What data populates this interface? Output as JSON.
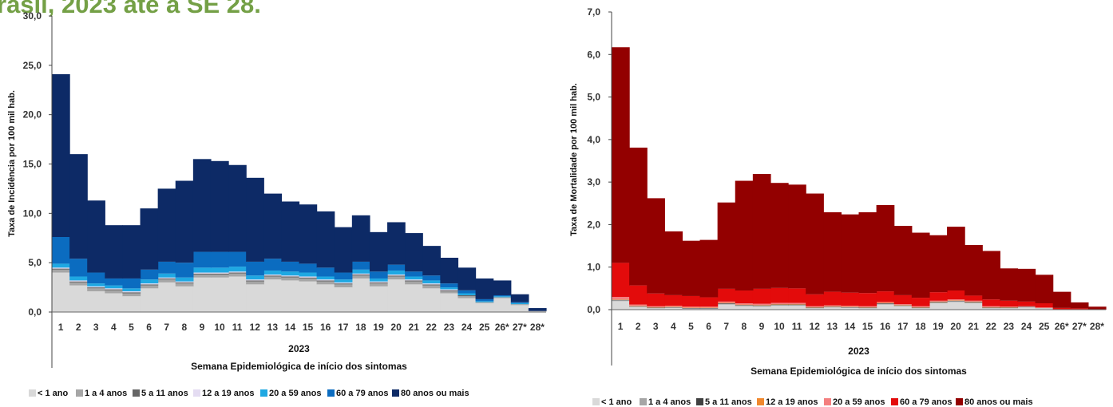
{
  "page": {
    "title_fragment": "rasil, 2023 até a SE 28."
  },
  "chart_data": [
    {
      "type": "area",
      "stacked": true,
      "step": true,
      "ylabel": "Taxa de Incidência por 100 mil hab.",
      "xlabel": "Semana Epidemiológica de início dos sintomas",
      "year_label": "2023",
      "ylim": [
        0,
        30
      ],
      "yticks": [
        "0,0",
        "5,0",
        "10,0",
        "15,0",
        "20,0",
        "25,0",
        "30,0"
      ],
      "categories": [
        "1",
        "2",
        "3",
        "4",
        "5",
        "6",
        "7",
        "8",
        "9",
        "10",
        "11",
        "12",
        "13",
        "14",
        "15",
        "16",
        "17",
        "18",
        "19",
        "20",
        "21",
        "22",
        "23",
        "24",
        "25",
        "26*",
        "27*",
        "28*"
      ],
      "legend_position": "bottom",
      "series": [
        {
          "name": "< 1 ano",
          "color": "#d9d9d9",
          "values": [
            4.0,
            2.7,
            2.1,
            1.9,
            1.6,
            2.4,
            3.0,
            2.6,
            3.5,
            3.5,
            3.6,
            2.8,
            3.3,
            3.2,
            3.1,
            2.8,
            2.5,
            3.4,
            2.6,
            3.3,
            2.8,
            2.4,
            1.9,
            1.4,
            0.9,
            1.4,
            0.7,
            0.1
          ]
        },
        {
          "name": "1 a 4 anos",
          "color": "#a6a6a6",
          "values": [
            0.3,
            0.3,
            0.3,
            0.3,
            0.3,
            0.3,
            0.3,
            0.3,
            0.3,
            0.3,
            0.3,
            0.3,
            0.3,
            0.3,
            0.3,
            0.3,
            0.3,
            0.3,
            0.3,
            0.3,
            0.3,
            0.3,
            0.2,
            0.2,
            0.1,
            0.1,
            0.1,
            0.0
          ]
        },
        {
          "name": "5 a 11 anos",
          "color": "#666666",
          "values": [
            0.1,
            0.1,
            0.1,
            0.1,
            0.1,
            0.1,
            0.1,
            0.1,
            0.1,
            0.1,
            0.1,
            0.1,
            0.1,
            0.1,
            0.1,
            0.1,
            0.1,
            0.1,
            0.1,
            0.1,
            0.1,
            0.1,
            0.1,
            0.1,
            0.0,
            0.0,
            0.0,
            0.0
          ]
        },
        {
          "name": "12 a 19 anos",
          "color": "#e4dcf2",
          "values": [
            0.1,
            0.1,
            0.1,
            0.1,
            0.1,
            0.1,
            0.1,
            0.1,
            0.1,
            0.1,
            0.1,
            0.1,
            0.1,
            0.1,
            0.1,
            0.1,
            0.1,
            0.1,
            0.1,
            0.1,
            0.1,
            0.1,
            0.1,
            0.0,
            0.0,
            0.0,
            0.0,
            0.0
          ]
        },
        {
          "name": "20 a 59 anos",
          "color": "#1fa8e2",
          "values": [
            0.4,
            0.4,
            0.3,
            0.3,
            0.3,
            0.4,
            0.4,
            0.4,
            0.5,
            0.5,
            0.5,
            0.4,
            0.4,
            0.4,
            0.4,
            0.3,
            0.3,
            0.4,
            0.3,
            0.4,
            0.3,
            0.3,
            0.2,
            0.2,
            0.1,
            0.1,
            0.1,
            0.0
          ]
        },
        {
          "name": "60 a 79 anos",
          "color": "#0b6cc0",
          "values": [
            2.7,
            1.8,
            1.1,
            0.7,
            1.0,
            1.0,
            1.2,
            1.5,
            1.6,
            1.6,
            1.5,
            1.4,
            1.2,
            1.0,
            0.9,
            0.9,
            0.7,
            0.8,
            0.7,
            0.6,
            0.5,
            0.5,
            0.4,
            0.3,
            0.2,
            0.1,
            0.1,
            0.0
          ]
        },
        {
          "name": "80 anos ou mais",
          "color": "#0d2a66",
          "values": [
            16.5,
            10.6,
            7.3,
            5.4,
            5.4,
            6.2,
            7.4,
            8.3,
            9.4,
            9.2,
            8.8,
            8.5,
            6.6,
            6.1,
            6.0,
            5.7,
            4.6,
            4.7,
            4.0,
            4.3,
            3.9,
            3.0,
            2.6,
            2.3,
            2.1,
            1.5,
            0.8,
            0.3
          ]
        }
      ]
    },
    {
      "type": "area",
      "stacked": true,
      "step": true,
      "ylabel": "Taxa de Mortalidade por 100 mil hab.",
      "xlabel": "Semana Epidemiológica de início dos sintomas",
      "year_label": "2023",
      "ylim": [
        0,
        7
      ],
      "yticks": [
        "0,0",
        "1,0",
        "2,0",
        "3,0",
        "4,0",
        "5,0",
        "6,0",
        "7,0"
      ],
      "categories": [
        "1",
        "2",
        "3",
        "4",
        "5",
        "6",
        "7",
        "8",
        "9",
        "10",
        "11",
        "12",
        "13",
        "14",
        "15",
        "16",
        "17",
        "18",
        "19",
        "20",
        "21",
        "22",
        "23",
        "24",
        "25",
        "26*",
        "27*",
        "28*"
      ],
      "legend_position": "bottom",
      "series": [
        {
          "name": "< 1 ano",
          "color": "#d9d9d9",
          "values": [
            0.2,
            0.06,
            0.03,
            0.04,
            0.02,
            0.02,
            0.12,
            0.08,
            0.07,
            0.09,
            0.09,
            0.03,
            0.05,
            0.04,
            0.03,
            0.12,
            0.08,
            0.03,
            0.15,
            0.18,
            0.15,
            0.03,
            0.03,
            0.05,
            0.03,
            0.01,
            0.01,
            0.0
          ]
        },
        {
          "name": "1 a 4 anos",
          "color": "#a6a6a6",
          "values": [
            0.02,
            0.01,
            0.01,
            0.01,
            0.01,
            0.01,
            0.02,
            0.02,
            0.02,
            0.02,
            0.02,
            0.01,
            0.01,
            0.01,
            0.01,
            0.02,
            0.01,
            0.01,
            0.02,
            0.02,
            0.02,
            0.01,
            0.01,
            0.01,
            0.01,
            0.0,
            0.0,
            0.0
          ]
        },
        {
          "name": "5 a 11 anos",
          "color": "#404040",
          "values": [
            0.01,
            0.01,
            0.01,
            0.01,
            0.01,
            0.01,
            0.01,
            0.01,
            0.01,
            0.01,
            0.01,
            0.01,
            0.01,
            0.01,
            0.01,
            0.01,
            0.01,
            0.01,
            0.01,
            0.01,
            0.01,
            0.01,
            0.01,
            0.01,
            0.0,
            0.0,
            0.0,
            0.0
          ]
        },
        {
          "name": "12 a 19 anos",
          "color": "#f0882e",
          "values": [
            0.01,
            0.01,
            0.01,
            0.01,
            0.01,
            0.01,
            0.01,
            0.01,
            0.01,
            0.01,
            0.01,
            0.01,
            0.01,
            0.01,
            0.01,
            0.01,
            0.01,
            0.01,
            0.01,
            0.01,
            0.01,
            0.01,
            0.01,
            0.0,
            0.0,
            0.0,
            0.0,
            0.0
          ]
        },
        {
          "name": "20 a 59 anos",
          "color": "#f47f7f",
          "values": [
            0.06,
            0.03,
            0.02,
            0.02,
            0.02,
            0.02,
            0.03,
            0.03,
            0.03,
            0.03,
            0.03,
            0.02,
            0.02,
            0.02,
            0.02,
            0.02,
            0.02,
            0.02,
            0.02,
            0.02,
            0.02,
            0.02,
            0.01,
            0.01,
            0.01,
            0.0,
            0.0,
            0.0
          ]
        },
        {
          "name": "60 a 79 anos",
          "color": "#e30b0b",
          "values": [
            0.8,
            0.45,
            0.3,
            0.25,
            0.25,
            0.22,
            0.3,
            0.3,
            0.35,
            0.35,
            0.34,
            0.28,
            0.32,
            0.31,
            0.31,
            0.25,
            0.21,
            0.2,
            0.2,
            0.21,
            0.12,
            0.16,
            0.14,
            0.11,
            0.1,
            0.03,
            0.02,
            0.0
          ]
        },
        {
          "name": "80 anos ou mais",
          "color": "#930000",
          "values": [
            5.07,
            3.24,
            2.24,
            1.5,
            1.3,
            1.35,
            2.03,
            2.58,
            2.7,
            2.47,
            2.44,
            2.37,
            1.87,
            1.84,
            1.9,
            2.03,
            1.63,
            1.53,
            1.34,
            1.5,
            1.19,
            1.14,
            0.76,
            0.77,
            0.67,
            0.38,
            0.14,
            0.07
          ]
        }
      ]
    }
  ]
}
